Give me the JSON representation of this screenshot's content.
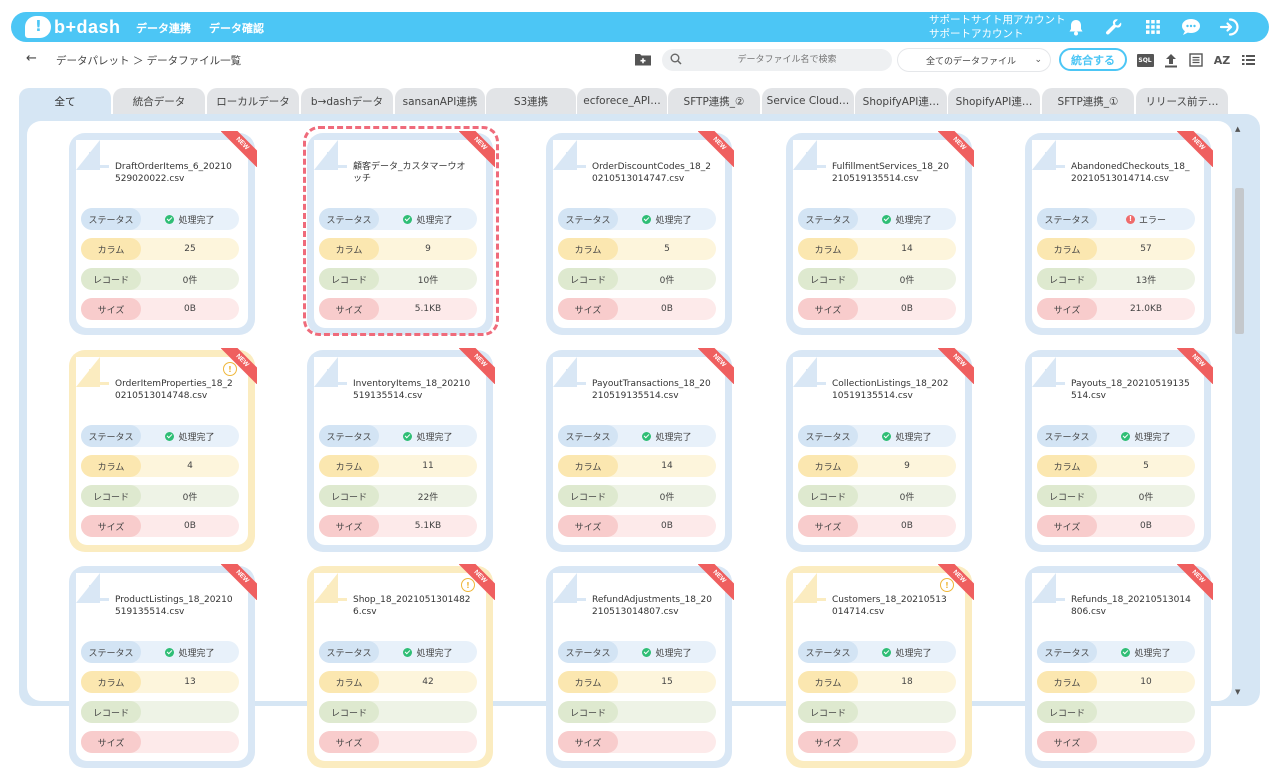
{
  "header": {
    "logo_text": "b+dash",
    "nav": [
      "データ連携",
      "データ確認"
    ],
    "account_line1": "サポートサイト用アカウント",
    "account_line2": "サポートアカウント",
    "brand_color": "#4cc6f5",
    "icons": [
      "bell-icon",
      "wrench-icon",
      "grid-icon",
      "chat-icon",
      "logout-icon"
    ]
  },
  "toolbar": {
    "breadcrumb": "データパレット ＞ データファイル一覧",
    "search_placeholder": "データファイル名で検索",
    "filter_value": "全てのデータファイル",
    "merge_label": "統合する",
    "sql_label": "SQL",
    "sort_label": "AZ"
  },
  "tabs": [
    "全て",
    "統合データ",
    "ローカルデータ",
    "b→dashデータ",
    "sansanAPI連携",
    "S3連携",
    "ecforece_API…",
    "SFTP連携_②",
    "Service Cloud…",
    "ShopifyAPI連…",
    "ShopifyAPI連…",
    "SFTP連携_①",
    "リリース前テ…"
  ],
  "labels": {
    "status": "ステータス",
    "column": "カラム",
    "record": "レコード",
    "size": "サイズ",
    "new_badge": "NEW"
  },
  "cards": [
    {
      "name": "DraftOrderItems_6_20210529020022.csv",
      "status": "処理完了",
      "status_type": "ok",
      "columns": "25",
      "records": "0件",
      "size": "0B",
      "warn": false
    },
    {
      "name": "顧客データ_カスタマーウオッチ",
      "status": "処理完了",
      "status_type": "ok",
      "columns": "9",
      "records": "10件",
      "size": "5.1KB",
      "warn": false,
      "selected": true
    },
    {
      "name": "OrderDiscountCodes_18_20210513014747.csv",
      "status": "処理完了",
      "status_type": "ok",
      "columns": "5",
      "records": "0件",
      "size": "0B",
      "warn": false
    },
    {
      "name": "FulfillmentServices_18_20210519135514.csv",
      "status": "処理完了",
      "status_type": "ok",
      "columns": "14",
      "records": "0件",
      "size": "0B",
      "warn": false
    },
    {
      "name": "AbandonedCheckouts_18_20210513014714.csv",
      "status": "エラー",
      "status_type": "error",
      "columns": "57",
      "records": "13件",
      "size": "21.0KB",
      "warn": false
    },
    {
      "name": "OrderItemProperties_18_20210513014748.csv",
      "status": "処理完了",
      "status_type": "ok",
      "columns": "4",
      "records": "0件",
      "size": "0B",
      "warn": true
    },
    {
      "name": "InventoryItems_18_20210519135514.csv",
      "status": "処理完了",
      "status_type": "ok",
      "columns": "11",
      "records": "22件",
      "size": "5.1KB",
      "warn": false
    },
    {
      "name": "PayoutTransactions_18_20210519135514.csv",
      "status": "処理完了",
      "status_type": "ok",
      "columns": "14",
      "records": "0件",
      "size": "0B",
      "warn": false
    },
    {
      "name": "CollectionListings_18_20210519135514.csv",
      "status": "処理完了",
      "status_type": "ok",
      "columns": "9",
      "records": "0件",
      "size": "0B",
      "warn": false
    },
    {
      "name": "Payouts_18_20210519135514.csv",
      "status": "処理完了",
      "status_type": "ok",
      "columns": "5",
      "records": "0件",
      "size": "0B",
      "warn": false
    },
    {
      "name": "ProductListings_18_20210519135514.csv",
      "status": "処理完了",
      "status_type": "ok",
      "columns": "13",
      "records": "",
      "size": "",
      "warn": false
    },
    {
      "name": "Shop_18_20210513014826.csv",
      "status": "処理完了",
      "status_type": "ok",
      "columns": "42",
      "records": "",
      "size": "",
      "warn": true
    },
    {
      "name": "RefundAdjustments_18_20210513014807.csv",
      "status": "処理完了",
      "status_type": "ok",
      "columns": "15",
      "records": "",
      "size": "",
      "warn": false
    },
    {
      "name": "Customers_18_20210513014714.csv",
      "status": "処理完了",
      "status_type": "ok",
      "columns": "18",
      "records": "",
      "size": "",
      "warn": true
    },
    {
      "name": "Refunds_18_20210513014806.csv",
      "status": "処理完了",
      "status_type": "ok",
      "columns": "10",
      "records": "",
      "size": "",
      "warn": false
    }
  ]
}
